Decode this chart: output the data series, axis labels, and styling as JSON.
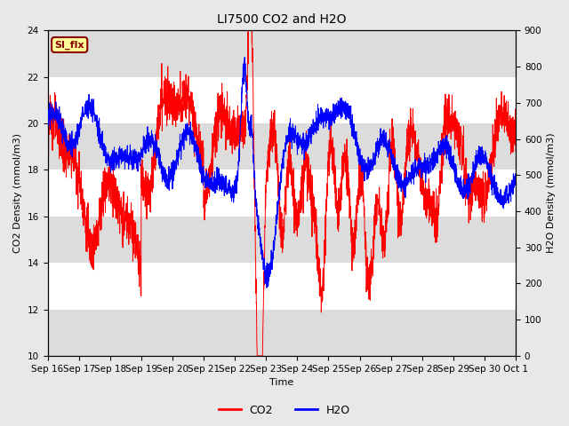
{
  "title": "LI7500 CO2 and H2O",
  "xlabel": "Time",
  "ylabel_left": "CO2 Density (mmol/m3)",
  "ylabel_right": "H2O Density (mmol/m3)",
  "ylim_left": [
    10,
    24
  ],
  "ylim_right": [
    0,
    900
  ],
  "yticks_left": [
    10,
    12,
    14,
    16,
    18,
    20,
    22,
    24
  ],
  "yticks_right": [
    0,
    100,
    200,
    300,
    400,
    500,
    600,
    700,
    800,
    900
  ],
  "color_co2": "#FF0000",
  "color_h2o": "#0000FF",
  "legend_labels": [
    "CO2",
    "H2O"
  ],
  "annotation_text": "SI_flx",
  "annotation_color": "#8B0000",
  "annotation_bg": "#FFFF99",
  "background_color": "#E8E8E8",
  "plot_bg": "#FFFFFF",
  "stripe_color": "#DCDCDC",
  "xtick_labels": [
    "Sep 16",
    "Sep 17",
    "Sep 18",
    "Sep 19",
    "Sep 20",
    "Sep 21",
    "Sep 22",
    "Sep 23",
    "Sep 24",
    "Sep 25",
    "Sep 26",
    "Sep 27",
    "Sep 28",
    "Sep 29",
    "Sep 30",
    "Oct 1"
  ],
  "title_fontsize": 10,
  "axis_label_fontsize": 8,
  "tick_fontsize": 7.5
}
